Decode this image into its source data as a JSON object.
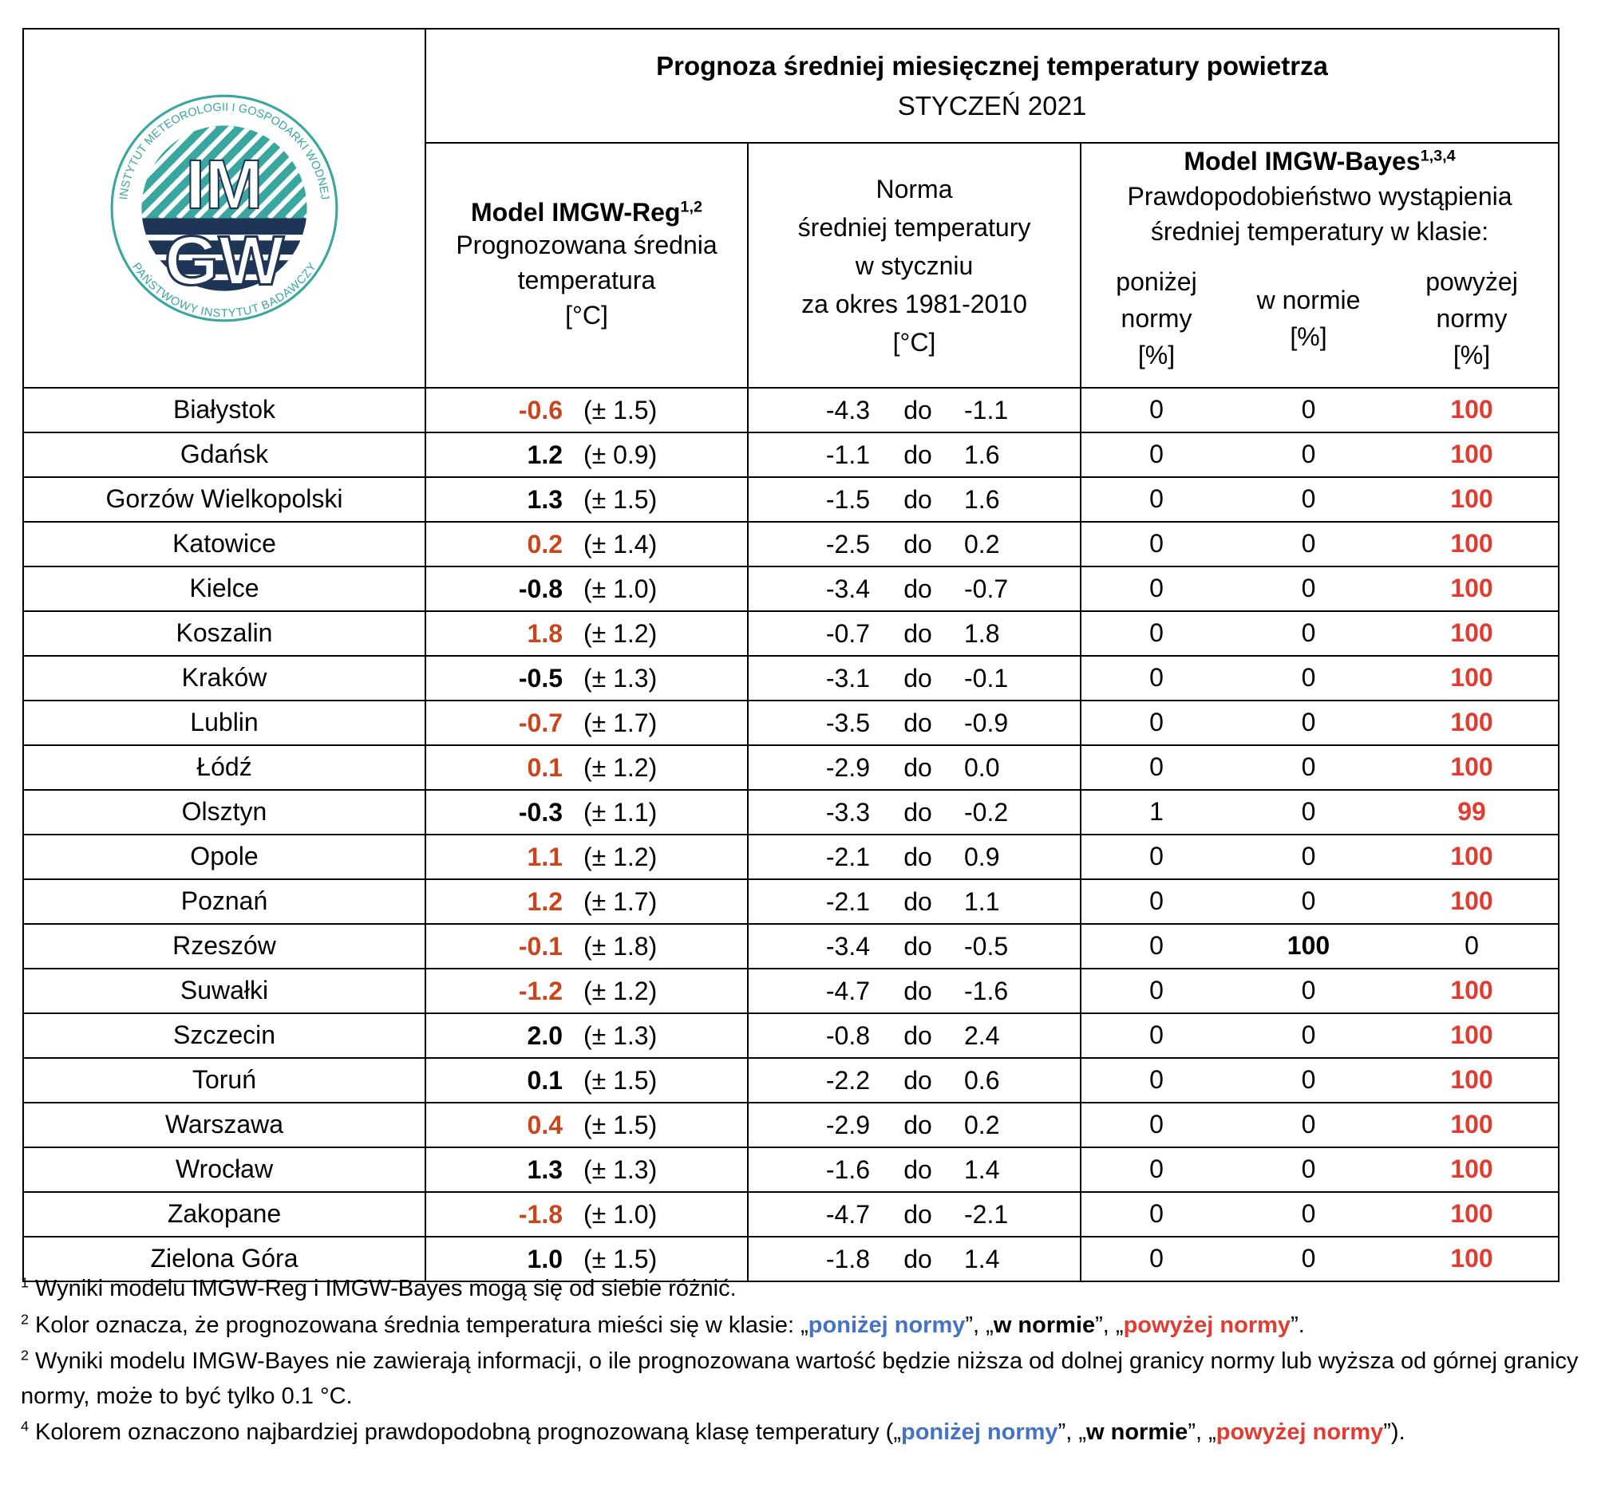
{
  "header": {
    "title": "Prognoza średniej miesięcznej temperatury powietrza",
    "subtitle": "STYCZEŃ 2021"
  },
  "logo": {
    "top": "IM",
    "bottom": "GW",
    "ring_top": "INSTYTUT METEOROLOGII I GOSPODARKI WODNEJ",
    "ring_bottom": "PAŃSTWOWY INSTYTUT BADAWCZY"
  },
  "columns": {
    "reg": {
      "title": "Model IMGW-Reg",
      "sup": "1,2",
      "lines": [
        "Prognozowana średnia",
        "temperatura",
        "[°C]"
      ]
    },
    "norm": {
      "lines": [
        "Norma",
        "średniej temperatury",
        "w styczniu",
        "za okres 1981-2010",
        "[°C]"
      ],
      "separator": "do"
    },
    "bayes": {
      "title": "Model IMGW-Bayes",
      "sup": "1,3,4",
      "lines": [
        "Prawdopodobieństwo wystąpienia",
        "średniej temperatury w klasie:"
      ],
      "classes": [
        [
          "poniżej",
          "normy",
          "[%]"
        ],
        [
          "w normie",
          "[%]"
        ],
        [
          "powyżej",
          "normy",
          "[%]"
        ]
      ]
    }
  },
  "rows": [
    {
      "city": "Białystok",
      "forecast": "-0.6",
      "forecast_color": "#c8461e",
      "uncertainty": "(± 1.5)",
      "norm": [
        "-4.3",
        "-1.1"
      ],
      "prob": [
        "0",
        "0",
        "100"
      ],
      "prob_color": "#e03c31"
    },
    {
      "city": "Gdańsk",
      "forecast": "1.2",
      "forecast_color": "#000000",
      "uncertainty": "(± 0.9)",
      "norm": [
        "-1.1",
        "1.6"
      ],
      "prob": [
        "0",
        "0",
        "100"
      ],
      "prob_color": "#e03c31"
    },
    {
      "city": "Gorzów Wielkopolski",
      "forecast": "1.3",
      "forecast_color": "#000000",
      "uncertainty": "(± 1.5)",
      "norm": [
        "-1.5",
        "1.6"
      ],
      "prob": [
        "0",
        "0",
        "100"
      ],
      "prob_color": "#e03c31"
    },
    {
      "city": "Katowice",
      "forecast": "0.2",
      "forecast_color": "#c8461e",
      "uncertainty": "(± 1.4)",
      "norm": [
        "-2.5",
        "0.2"
      ],
      "prob": [
        "0",
        "0",
        "100"
      ],
      "prob_color": "#e03c31"
    },
    {
      "city": "Kielce",
      "forecast": "-0.8",
      "forecast_color": "#000000",
      "uncertainty": "(± 1.0)",
      "norm": [
        "-3.4",
        "-0.7"
      ],
      "prob": [
        "0",
        "0",
        "100"
      ],
      "prob_color": "#e03c31"
    },
    {
      "city": "Koszalin",
      "forecast": "1.8",
      "forecast_color": "#c8461e",
      "uncertainty": "(± 1.2)",
      "norm": [
        "-0.7",
        "1.8"
      ],
      "prob": [
        "0",
        "0",
        "100"
      ],
      "prob_color": "#e03c31"
    },
    {
      "city": "Kraków",
      "forecast": "-0.5",
      "forecast_color": "#000000",
      "uncertainty": "(± 1.3)",
      "norm": [
        "-3.1",
        "-0.1"
      ],
      "prob": [
        "0",
        "0",
        "100"
      ],
      "prob_color": "#e03c31"
    },
    {
      "city": "Lublin",
      "forecast": "-0.7",
      "forecast_color": "#c8461e",
      "uncertainty": "(± 1.7)",
      "norm": [
        "-3.5",
        "-0.9"
      ],
      "prob": [
        "0",
        "0",
        "100"
      ],
      "prob_color": "#e03c31"
    },
    {
      "city": "Łódź",
      "forecast": "0.1",
      "forecast_color": "#c8461e",
      "uncertainty": "(± 1.2)",
      "norm": [
        "-2.9",
        "0.0"
      ],
      "prob": [
        "0",
        "0",
        "100"
      ],
      "prob_color": "#e03c31"
    },
    {
      "city": "Olsztyn",
      "forecast": "-0.3",
      "forecast_color": "#000000",
      "uncertainty": "(± 1.1)",
      "norm": [
        "-3.3",
        "-0.2"
      ],
      "prob": [
        "1",
        "0",
        "99"
      ],
      "prob_color": "#e03c31"
    },
    {
      "city": "Opole",
      "forecast": "1.1",
      "forecast_color": "#c8461e",
      "uncertainty": "(± 1.2)",
      "norm": [
        "-2.1",
        "0.9"
      ],
      "prob": [
        "0",
        "0",
        "100"
      ],
      "prob_color": "#e03c31"
    },
    {
      "city": "Poznań",
      "forecast": "1.2",
      "forecast_color": "#c8461e",
      "uncertainty": "(± 1.7)",
      "norm": [
        "-2.1",
        "1.1"
      ],
      "prob": [
        "0",
        "0",
        "100"
      ],
      "prob_color": "#e03c31"
    },
    {
      "city": "Rzeszów",
      "forecast": "-0.1",
      "forecast_color": "#c8461e",
      "uncertainty": "(± 1.8)",
      "norm": [
        "-3.4",
        "-0.5"
      ],
      "prob": [
        "0",
        "100",
        "0"
      ],
      "prob_color": "#000000"
    },
    {
      "city": "Suwałki",
      "forecast": "-1.2",
      "forecast_color": "#c8461e",
      "uncertainty": "(± 1.2)",
      "norm": [
        "-4.7",
        "-1.6"
      ],
      "prob": [
        "0",
        "0",
        "100"
      ],
      "prob_color": "#e03c31"
    },
    {
      "city": "Szczecin",
      "forecast": "2.0",
      "forecast_color": "#000000",
      "uncertainty": "(± 1.3)",
      "norm": [
        "-0.8",
        "2.4"
      ],
      "prob": [
        "0",
        "0",
        "100"
      ],
      "prob_color": "#e03c31"
    },
    {
      "city": "Toruń",
      "forecast": "0.1",
      "forecast_color": "#000000",
      "uncertainty": "(± 1.5)",
      "norm": [
        "-2.2",
        "0.6"
      ],
      "prob": [
        "0",
        "0",
        "100"
      ],
      "prob_color": "#e03c31"
    },
    {
      "city": "Warszawa",
      "forecast": "0.4",
      "forecast_color": "#c8461e",
      "uncertainty": "(± 1.5)",
      "norm": [
        "-2.9",
        "0.2"
      ],
      "prob": [
        "0",
        "0",
        "100"
      ],
      "prob_color": "#e03c31"
    },
    {
      "city": "Wrocław",
      "forecast": "1.3",
      "forecast_color": "#000000",
      "uncertainty": "(± 1.3)",
      "norm": [
        "-1.6",
        "1.4"
      ],
      "prob": [
        "0",
        "0",
        "100"
      ],
      "prob_color": "#e03c31"
    },
    {
      "city": "Zakopane",
      "forecast": "-1.8",
      "forecast_color": "#c8461e",
      "uncertainty": "(± 1.0)",
      "norm": [
        "-4.7",
        "-2.1"
      ],
      "prob": [
        "0",
        "0",
        "100"
      ],
      "prob_color": "#e03c31"
    },
    {
      "city": "Zielona Góra",
      "forecast": "1.0",
      "forecast_color": "#000000",
      "uncertainty": "(± 1.5)",
      "norm": [
        "-1.8",
        "1.4"
      ],
      "prob": [
        "0",
        "0",
        "100"
      ],
      "prob_color": "#e03c31"
    }
  ],
  "footnotes": [
    {
      "sup": "1",
      "segments": [
        {
          "text": " Wyniki modelu IMGW-Reg i IMGW-Bayes mogą się od siebie różnić."
        }
      ]
    },
    {
      "sup": "2",
      "segments": [
        {
          "text": " Kolor oznacza, że prognozowana średnia temperatura mieści się w klasie: „"
        },
        {
          "text": "poniżej normy",
          "bold": true,
          "color": "#4472c4"
        },
        {
          "text": "”, „"
        },
        {
          "text": "w normie",
          "bold": true,
          "color": "#000000"
        },
        {
          "text": "”, „"
        },
        {
          "text": "powyżej normy",
          "bold": true,
          "color": "#e03c31"
        },
        {
          "text": "”."
        }
      ]
    },
    {
      "sup": "2",
      "segments": [
        {
          "text": " Wyniki modelu IMGW-Bayes nie zawierają informacji, o ile prognozowana wartość będzie niższa od dolnej granicy normy lub wyższa od górnej granicy normy, może to być tylko 0.1 °C."
        }
      ]
    },
    {
      "sup": "4",
      "segments": [
        {
          "text": " Kolorem oznaczono najbardziej prawdopodobną prognozowaną klasę temperatury („"
        },
        {
          "text": "poniżej normy",
          "bold": true,
          "color": "#4472c4"
        },
        {
          "text": "”, „"
        },
        {
          "text": "w normie",
          "bold": true,
          "color": "#000000"
        },
        {
          "text": "”, „"
        },
        {
          "text": "powyżej normy",
          "bold": true,
          "color": "#e03c31"
        },
        {
          "text": "”)."
        }
      ]
    }
  ]
}
